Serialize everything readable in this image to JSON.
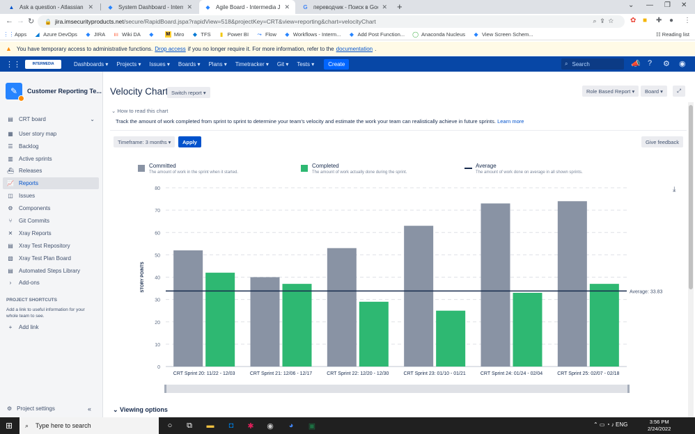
{
  "browser": {
    "tabs": [
      {
        "title": "Ask a question - Atlassian Comm",
        "icon": "atlassian-icon",
        "active": false
      },
      {
        "title": "System Dashboard - Intermedia",
        "icon": "jira-icon",
        "active": false
      },
      {
        "title": "Agile Board - Intermedia JIRA",
        "icon": "jira-icon",
        "active": true
      },
      {
        "title": "переводчик - Поиск в Google",
        "icon": "google-icon",
        "active": false
      }
    ],
    "url_host": "jira.imsecurityproducts.net",
    "url_path": "/secure/RapidBoard.jspa?rapidView=518&projectKey=CRT&view=reporting&chart=velocityChart",
    "bookmarks": [
      "Apps",
      "Azure DevOps",
      "JIRA",
      "Wiki DA",
      "",
      "Miro",
      "TFS",
      "Power BI",
      "Flow",
      "Workflows - Interm...",
      "Add Post Function...",
      "Anaconda Nucleus",
      "View Screen Schem..."
    ],
    "reading_list": "Reading list"
  },
  "banner": {
    "text_before": "You have temporary access to administrative functions.",
    "link1": "Drop access",
    "text_middle": "if you no longer require it. For more information, refer to the",
    "link2": "documentation",
    "text_after": "."
  },
  "nav": {
    "logo": "INTERMEDIA",
    "menus": [
      "Dashboards ▾",
      "Projects ▾",
      "Issues ▾",
      "Boards ▾",
      "Plans ▾",
      "Timetracker ▾",
      "Git ▾",
      "Tests ▾"
    ],
    "create": "Create",
    "search_placeholder": "Search"
  },
  "sidebar": {
    "project_name": "Customer Reporting Te...",
    "board": "CRT board",
    "items": [
      {
        "label": "User story map",
        "icon": "story-map-icon",
        "glyph": "▦"
      },
      {
        "label": "Backlog",
        "icon": "backlog-icon",
        "glyph": "☰"
      },
      {
        "label": "Active sprints",
        "icon": "sprints-icon",
        "glyph": "▥"
      },
      {
        "label": "Releases",
        "icon": "releases-icon",
        "glyph": "⛴"
      },
      {
        "label": "Reports",
        "icon": "reports-icon",
        "glyph": "📈"
      },
      {
        "label": "Issues",
        "icon": "issues-icon",
        "glyph": "◫"
      },
      {
        "label": "Components",
        "icon": "components-icon",
        "glyph": "⚙"
      },
      {
        "label": "Git Commits",
        "icon": "git-icon",
        "glyph": "⑂"
      },
      {
        "label": "Xray Reports",
        "icon": "xray-icon",
        "glyph": "✕"
      },
      {
        "label": "Xray Test Repository",
        "icon": "xray-repo-icon",
        "glyph": "▤"
      },
      {
        "label": "Xray Test Plan Board",
        "icon": "xray-plan-icon",
        "glyph": "▧"
      },
      {
        "label": "Automated Steps Library",
        "icon": "automation-icon",
        "glyph": "▤"
      },
      {
        "label": "Add-ons",
        "icon": "chevron-right-icon",
        "glyph": "›"
      }
    ],
    "shortcuts_heading": "PROJECT SHORTCUTS",
    "shortcuts_desc": "Add a link to useful information for your whole team to see.",
    "add_link": "Add link",
    "project_settings": "Project settings"
  },
  "page": {
    "title": "Velocity Chart",
    "switch_report": "Switch report ▾",
    "role_report": "Role Based Report ▾",
    "board_btn": "Board ▾",
    "how_to": "How to read this chart",
    "description": "Track the amount of work completed from sprint to sprint to determine your team's velocity and estimate the work your team can realistically achieve in future sprints.",
    "learn_more": "Learn more",
    "timeframe": "Timeframe: 3 months ▾",
    "apply": "Apply",
    "feedback": "Give feedback",
    "viewing_options": "Viewing options"
  },
  "legend": [
    {
      "title": "Committed",
      "desc": "The amount of work in the sprint when it started.",
      "color": "#8993a4"
    },
    {
      "title": "Completed",
      "desc": "The amount of work actually done during the sprint.",
      "color": "#2eb872"
    },
    {
      "title": "Average",
      "desc": "The amount of work done on average in all shown sprints.",
      "color": "#172b4d"
    }
  ],
  "chart_data": {
    "type": "bar",
    "ylabel": "STORY POINTS",
    "ylim": [
      0,
      80
    ],
    "yticks": [
      0,
      10,
      20,
      30,
      40,
      50,
      60,
      70,
      80
    ],
    "categories": [
      "CRT Sprint 20: 11/22 - 12/03",
      "CRT Sprint 21: 12/06 - 12/17",
      "CRT Sprint 22: 12/20 - 12/30",
      "CRT Sprint 23: 01/10 - 01/21",
      "CRT Sprint 24: 01/24 - 02/04",
      "CRT Sprint 25: 02/07 - 02/18"
    ],
    "series": [
      {
        "name": "Committed",
        "values": [
          52,
          40,
          53,
          63,
          73,
          74
        ],
        "color": "#8993a4"
      },
      {
        "name": "Completed",
        "values": [
          42,
          37,
          29,
          25,
          33,
          37
        ],
        "color": "#2eb872"
      }
    ],
    "average": 33.83,
    "average_label": "Average: 33.83",
    "grid": true
  },
  "taskbar": {
    "search_placeholder": "Type here to search",
    "lang": "ENG",
    "time": "3:56 PM",
    "date": "2/24/2022"
  }
}
